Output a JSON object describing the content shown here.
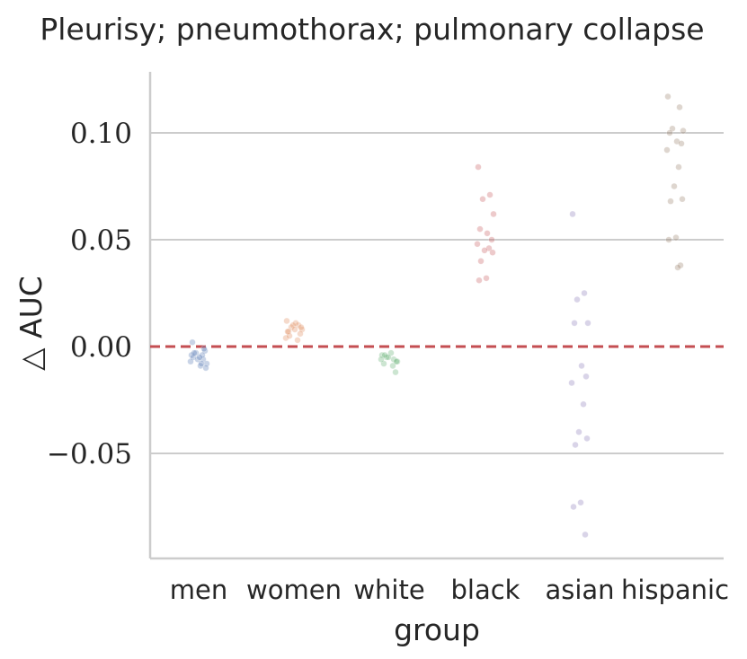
{
  "chart_data": {
    "type": "scatter",
    "title": "Pleurisy; pneumothorax; pulmonary collapse",
    "xlabel": "group",
    "ylabel": "△ AUC",
    "categories": [
      "men",
      "women",
      "white",
      "black",
      "asian",
      "hispanic"
    ],
    "ylim": [
      -0.1,
      0.13
    ],
    "yticks": [
      0.1,
      0.05,
      0.0,
      -0.05
    ],
    "ytick_labels": [
      "0.10",
      "0.05",
      "0.00",
      "−0.05"
    ],
    "grid": "horizontal",
    "reference_line": {
      "y": 0.0,
      "style": "dashed",
      "color": "#c44e52"
    },
    "colors": {
      "men": "#4c72b0",
      "women": "#dd8452",
      "white": "#55a868",
      "black": "#c44e52",
      "asian": "#8172b3",
      "hispanic": "#937860",
      "grid": "#cccccc",
      "axis": "#cccccc",
      "text": "#262626"
    },
    "series": [
      {
        "category": "men",
        "values": [
          -0.004,
          -0.006,
          -0.003,
          -0.008,
          -0.005,
          -0.009,
          -0.002,
          -0.007,
          -0.004,
          -0.006,
          -0.01,
          -0.003,
          -0.005,
          0.002,
          -0.001,
          -0.008
        ]
      },
      {
        "category": "women",
        "values": [
          0.012,
          0.01,
          0.009,
          0.008,
          0.007,
          0.011,
          0.006,
          0.004,
          0.003,
          0.01,
          0.009,
          0.005,
          0.008,
          0.007
        ]
      },
      {
        "category": "white",
        "values": [
          -0.004,
          -0.006,
          -0.005,
          -0.007,
          -0.008,
          -0.003,
          -0.012,
          -0.006,
          -0.009,
          -0.005,
          -0.007,
          -0.004
        ]
      },
      {
        "category": "black",
        "values": [
          0.084,
          0.071,
          0.069,
          0.062,
          0.055,
          0.053,
          0.05,
          0.048,
          0.046,
          0.045,
          0.044,
          0.04,
          0.032,
          0.031
        ]
      },
      {
        "category": "asian",
        "values": [
          0.062,
          0.025,
          0.022,
          0.011,
          0.011,
          -0.009,
          -0.014,
          -0.017,
          -0.027,
          -0.04,
          -0.043,
          -0.046,
          -0.073,
          -0.075,
          -0.088
        ]
      },
      {
        "category": "hispanic",
        "values": [
          0.117,
          0.112,
          0.102,
          0.101,
          0.1,
          0.096,
          0.095,
          0.092,
          0.084,
          0.075,
          0.069,
          0.068,
          0.051,
          0.05,
          0.038,
          0.037
        ]
      }
    ]
  }
}
